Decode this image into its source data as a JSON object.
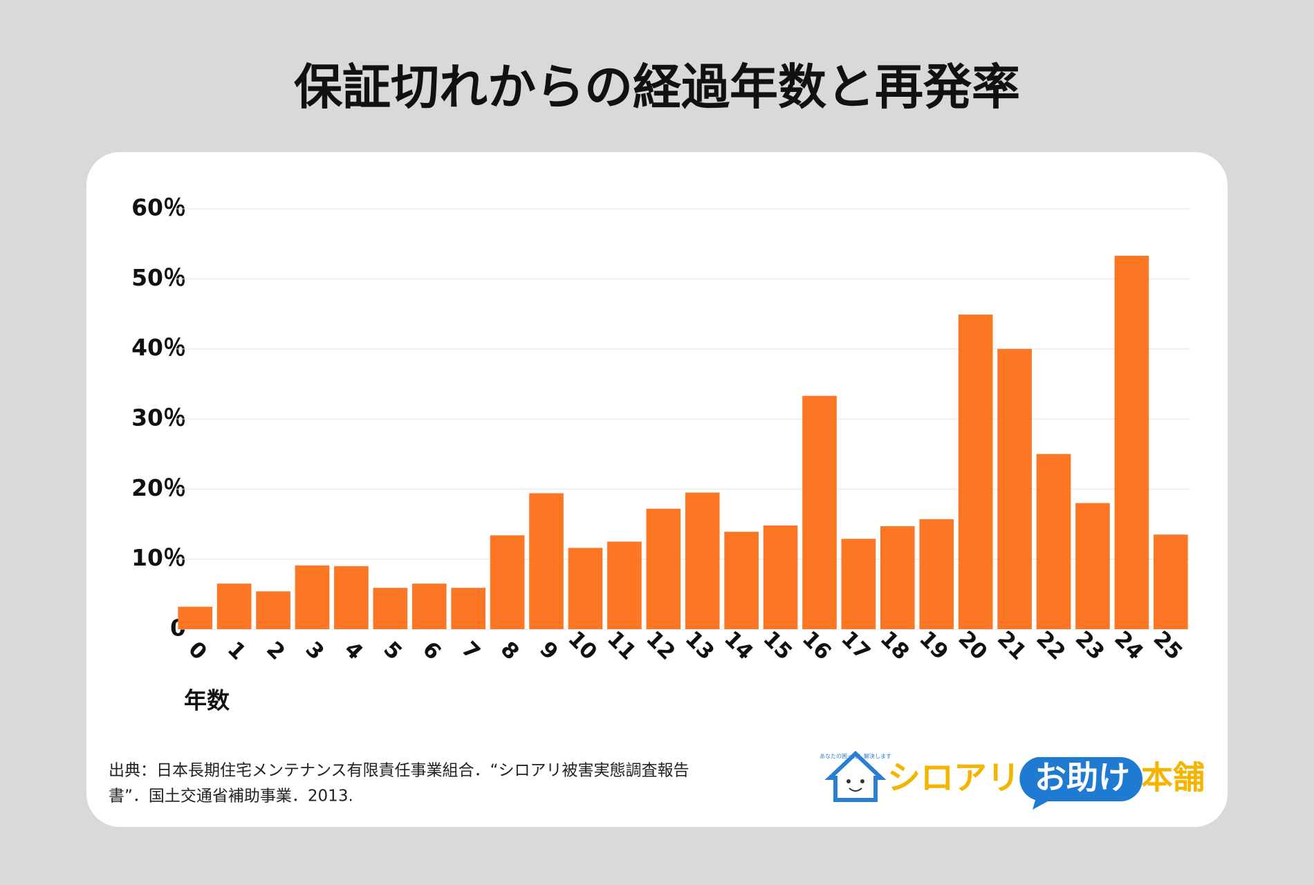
{
  "chart_data": {
    "type": "bar",
    "title": "保証切れからの経過年数と再発率",
    "categories": [
      "0",
      "1",
      "2",
      "3",
      "4",
      "5",
      "6",
      "7",
      "8",
      "9",
      "10",
      "11",
      "12",
      "13",
      "14",
      "15",
      "16",
      "17",
      "18",
      "19",
      "20",
      "21",
      "22",
      "23",
      "24",
      "25"
    ],
    "values": [
      3.2,
      6.5,
      5.4,
      9.1,
      9.0,
      5.9,
      6.5,
      5.9,
      13.4,
      19.4,
      11.6,
      12.5,
      17.2,
      19.5,
      13.9,
      14.8,
      33.3,
      12.9,
      14.7,
      15.7,
      44.9,
      40.0,
      25.0,
      18.0,
      53.3,
      13.5
    ],
    "color": "#fc7623",
    "ylim": [
      0,
      60
    ],
    "yticks": [
      0,
      {
        "value": 10,
        "label": "10％"
      },
      {
        "value": 20,
        "label": "20％"
      },
      {
        "value": 30,
        "label": "30％"
      },
      {
        "value": 40,
        "label": "40％"
      },
      {
        "value": 50,
        "label": "50％"
      },
      {
        "value": 60,
        "label": "60％"
      }
    ],
    "grid": true,
    "x_label": "年数",
    "source": [
      "出典：日本長期住宅メンテナンス有限責任事業組合．“シロアリ被害実態調査報告",
      "書”．国土交通省補助事業．2013."
    ],
    "logo": {
      "tagline": "あなたの困った！解決します",
      "name_part1": "シロアリ",
      "name_part2": "お助け",
      "name_part3": "本舗"
    }
  }
}
